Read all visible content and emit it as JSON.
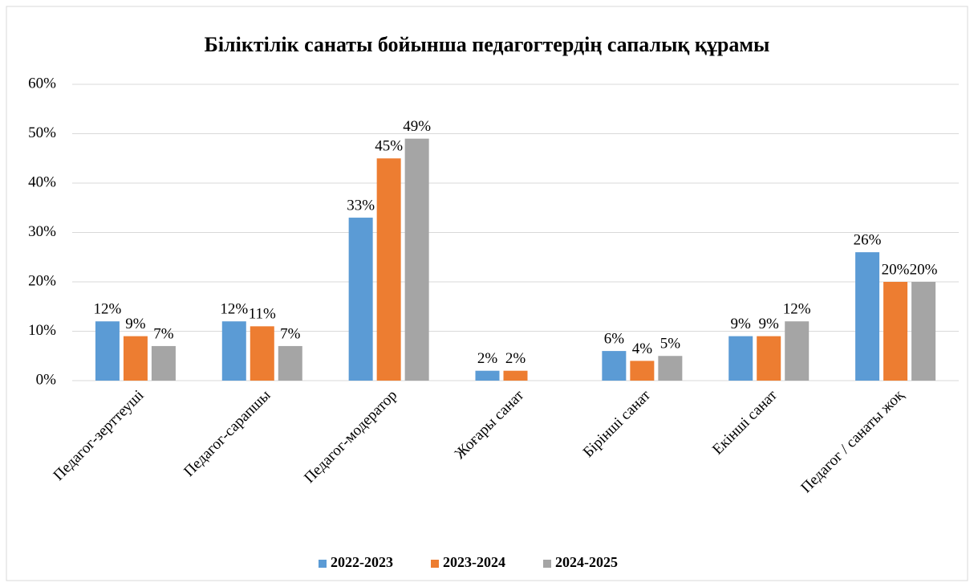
{
  "chart_data": {
    "type": "bar",
    "title": "Біліктілік санаты бойынша педагогтердің сапалық құрамы",
    "categories": [
      "Педагог-зерттеуші",
      "Педагог-сарапшы",
      "Педагог-модератор",
      "Жоғары санат",
      "Бірінші санат",
      "Екінші санат",
      "Педагог / санаты жоқ"
    ],
    "series": [
      {
        "name": "2022-2023",
        "color": "#5b9bd5",
        "values": [
          12,
          12,
          33,
          2,
          6,
          9,
          26
        ],
        "value_labels": [
          "12%",
          "12%",
          "33%",
          "2%",
          "6%",
          "9%",
          "26%"
        ]
      },
      {
        "name": "2023-2024",
        "color": "#ed7d31",
        "values": [
          9,
          11,
          45,
          2,
          4,
          9,
          20
        ],
        "value_labels": [
          "9%",
          "11%",
          "45%",
          "2%",
          "4%",
          "9%",
          "20%"
        ]
      },
      {
        "name": "2024-2025",
        "color": "#a5a5a5",
        "values": [
          7,
          7,
          49,
          null,
          5,
          12,
          20
        ],
        "value_labels": [
          "7%",
          "7%",
          "49%",
          null,
          "5%",
          "12%",
          "20%"
        ]
      }
    ],
    "ylim": [
      0,
      60
    ],
    "yticks": [
      {
        "value": 0,
        "label": "0%"
      },
      {
        "value": 10,
        "label": "10%"
      },
      {
        "value": 20,
        "label": "20%"
      },
      {
        "value": 30,
        "label": "30%"
      },
      {
        "value": 40,
        "label": "40%"
      },
      {
        "value": 50,
        "label": "50%"
      },
      {
        "value": 60,
        "label": "60%"
      }
    ],
    "grid": true,
    "legend": "bottom"
  }
}
